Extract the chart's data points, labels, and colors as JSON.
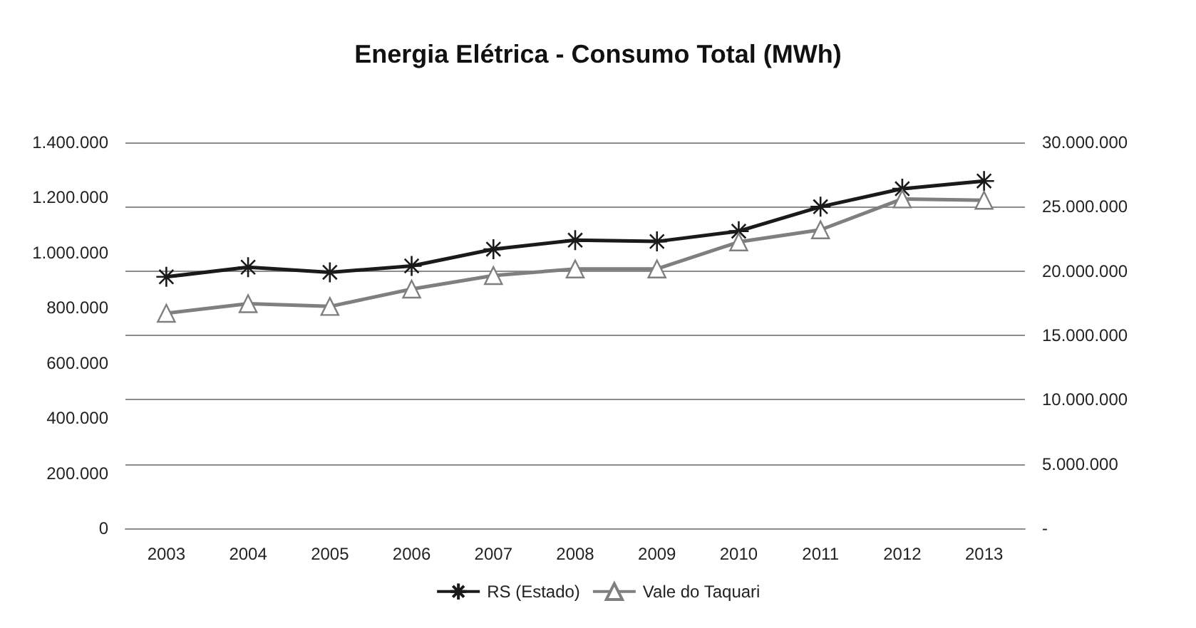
{
  "chart_data": {
    "type": "line",
    "title": "Energia Elétrica - Consumo Total (MWh)",
    "categories": [
      "2003",
      "2004",
      "2005",
      "2006",
      "2007",
      "2008",
      "2009",
      "2010",
      "2011",
      "2012",
      "2013"
    ],
    "series": [
      {
        "name": "RS (Estado)",
        "color": "#1a1a1a",
        "axis": "y2",
        "marker": "cross",
        "values": [
          19550000,
          20300000,
          19900000,
          20400000,
          21700000,
          22400000,
          22300000,
          23100000,
          25000000,
          26400000,
          27000000
        ]
      },
      {
        "name": "Vale do Taquari",
        "color": "#7f7f7f",
        "axis": "y",
        "marker": "triangle",
        "values": [
          780000,
          815000,
          805000,
          868000,
          917000,
          941000,
          941000,
          1039000,
          1083000,
          1195000,
          1190000
        ]
      }
    ],
    "ylim": [
      0,
      1400000
    ],
    "yticks": [
      {
        "value": 0,
        "label": "0"
      },
      {
        "value": 200000,
        "label": "200.000"
      },
      {
        "value": 400000,
        "label": "400.000"
      },
      {
        "value": 600000,
        "label": "600.000"
      },
      {
        "value": 800000,
        "label": "800.000"
      },
      {
        "value": 1000000,
        "label": "1.000.000"
      },
      {
        "value": 1200000,
        "label": "1.200.000"
      },
      {
        "value": 1400000,
        "label": "1.400.000"
      }
    ],
    "y2lim": [
      0,
      30000000
    ],
    "y2ticks": [
      {
        "value": 0,
        "label": "-"
      },
      {
        "value": 5000000,
        "label": "5.000.000"
      },
      {
        "value": 10000000,
        "label": "10.000.000"
      },
      {
        "value": 15000000,
        "label": "15.000.000"
      },
      {
        "value": 20000000,
        "label": "20.000.000"
      },
      {
        "value": 25000000,
        "label": "25.000.000"
      },
      {
        "value": 30000000,
        "label": "30.000.000"
      }
    ],
    "grid": true,
    "legend": "bottom",
    "line_style": "solid"
  }
}
